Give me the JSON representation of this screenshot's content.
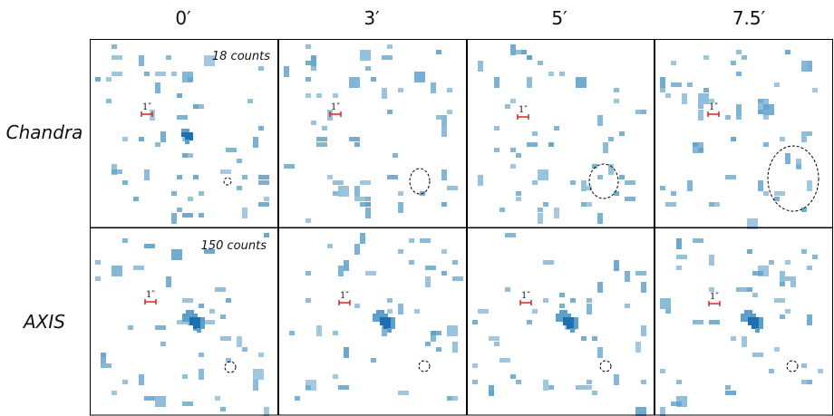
{
  "columns": [
    {
      "label": "0′"
    },
    {
      "label": "3′"
    },
    {
      "label": "5′"
    },
    {
      "label": "7.5′"
    }
  ],
  "rows": [
    {
      "label": "Chandra",
      "counts_label": "18 counts"
    },
    {
      "label": "AXIS",
      "counts_label": "150 counts"
    }
  ],
  "scale_bar_label": "1″",
  "colors": {
    "pixel": "#5b9fcb",
    "pixel_dark": "#1e6fb2",
    "scale_bar": "#d62728",
    "border": "#000000"
  }
}
